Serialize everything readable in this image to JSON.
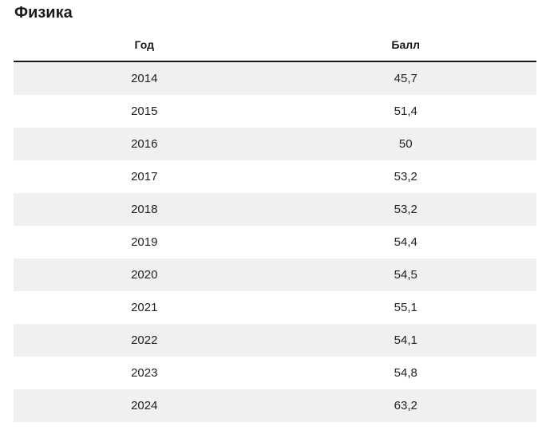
{
  "title": "Физика",
  "table": {
    "columns": [
      "Год",
      "Балл"
    ],
    "rows": [
      [
        "2014",
        "45,7"
      ],
      [
        "2015",
        "51,4"
      ],
      [
        "2016",
        "50"
      ],
      [
        "2017",
        "53,2"
      ],
      [
        "2018",
        "53,2"
      ],
      [
        "2019",
        "54,4"
      ],
      [
        "2020",
        "54,5"
      ],
      [
        "2021",
        "55,1"
      ],
      [
        "2022",
        "54,1"
      ],
      [
        "2023",
        "54,8"
      ],
      [
        "2024",
        "63,2"
      ]
    ]
  },
  "colors": {
    "stripe": "#f0f0f0",
    "header_rule": "#1a1a1a",
    "text": "#222222"
  }
}
